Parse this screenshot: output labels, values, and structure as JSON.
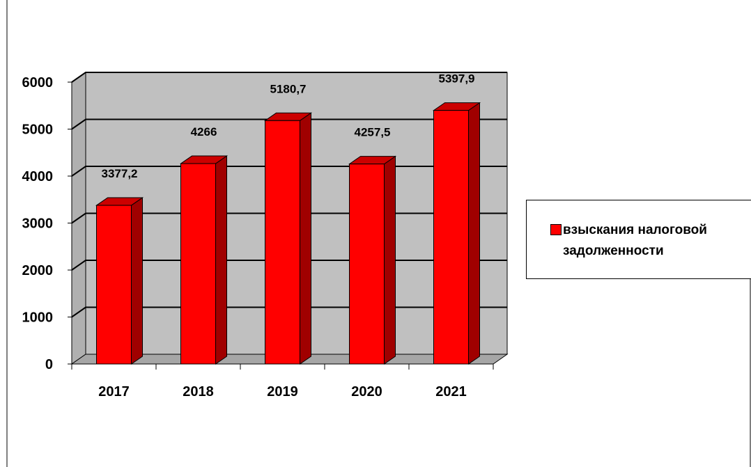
{
  "chart_data": {
    "type": "bar",
    "categories": [
      "2017",
      "2018",
      "2019",
      "2020",
      "2021"
    ],
    "series": [
      {
        "name": "взыскания налоговой задолженности",
        "values": [
          3377.2,
          4266,
          5180.7,
          4257.5,
          5397.9
        ],
        "data_labels": [
          "3377,2",
          "4266",
          "5180,7",
          "4257,5",
          "5397,9"
        ]
      }
    ],
    "y_ticks": [
      "0",
      "1000",
      "2000",
      "3000",
      "4000",
      "5000",
      "6000"
    ],
    "ylim": [
      0,
      6000
    ],
    "title": "",
    "xlabel": "",
    "ylabel": "",
    "grid": true,
    "legend_position": "right",
    "colors": {
      "bar_front": "#ff0000",
      "bar_side": "#a00000",
      "bar_top": "#cc0000",
      "wall": "#c0c0c0",
      "floor": "#a6a6a6"
    }
  }
}
